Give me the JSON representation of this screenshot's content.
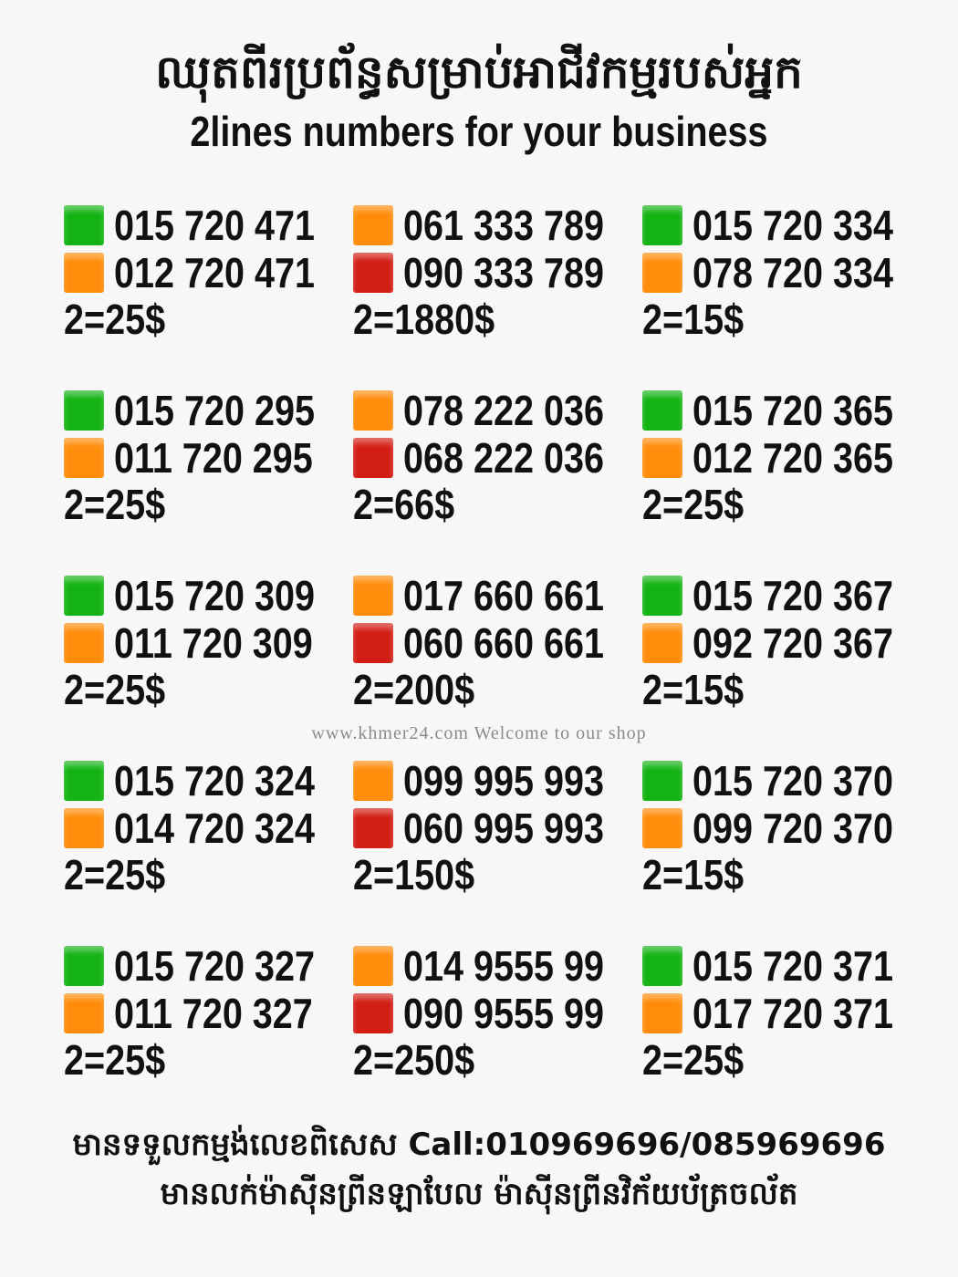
{
  "header": {
    "title_khmer": "ឈុតពីរប្រព័ន្ធសម្រាប់អាជីវកម្មរបស់អ្នក",
    "title_english": "2lines numbers for your business"
  },
  "colors": {
    "green": "#13b313",
    "orange": "#ff8c0a",
    "red": "#d21d14"
  },
  "offers": [
    {
      "lines": [
        {
          "number": "015 720 471",
          "carrier_color": "green"
        },
        {
          "number": "012 720 471",
          "carrier_color": "orange"
        }
      ],
      "price": "2=25$"
    },
    {
      "lines": [
        {
          "number": "061 333 789",
          "carrier_color": "orange"
        },
        {
          "number": "090 333 789",
          "carrier_color": "red"
        }
      ],
      "price": "2=1880$"
    },
    {
      "lines": [
        {
          "number": "015 720 334",
          "carrier_color": "green"
        },
        {
          "number": "078 720 334",
          "carrier_color": "orange"
        }
      ],
      "price": "2=15$"
    },
    {
      "lines": [
        {
          "number": "015 720 295",
          "carrier_color": "green"
        },
        {
          "number": "011 720 295",
          "carrier_color": "orange"
        }
      ],
      "price": "2=25$"
    },
    {
      "lines": [
        {
          "number": "078 222 036",
          "carrier_color": "orange"
        },
        {
          "number": "068 222 036",
          "carrier_color": "red"
        }
      ],
      "price": "2=66$"
    },
    {
      "lines": [
        {
          "number": "015 720 365",
          "carrier_color": "green"
        },
        {
          "number": "012 720 365",
          "carrier_color": "orange"
        }
      ],
      "price": "2=25$"
    },
    {
      "lines": [
        {
          "number": "015 720 309",
          "carrier_color": "green"
        },
        {
          "number": "011 720 309",
          "carrier_color": "orange"
        }
      ],
      "price": "2=25$"
    },
    {
      "lines": [
        {
          "number": "017 660 661",
          "carrier_color": "orange"
        },
        {
          "number": "060 660 661",
          "carrier_color": "red"
        }
      ],
      "price": "2=200$"
    },
    {
      "lines": [
        {
          "number": "015 720 367",
          "carrier_color": "green"
        },
        {
          "number": "092 720 367",
          "carrier_color": "orange"
        }
      ],
      "price": "2=15$"
    },
    {
      "lines": [
        {
          "number": "015 720 324",
          "carrier_color": "green"
        },
        {
          "number": "014 720 324",
          "carrier_color": "orange"
        }
      ],
      "price": "2=25$"
    },
    {
      "lines": [
        {
          "number": "099 995 993",
          "carrier_color": "orange"
        },
        {
          "number": "060 995 993",
          "carrier_color": "red"
        }
      ],
      "price": "2=150$"
    },
    {
      "lines": [
        {
          "number": "015 720 370",
          "carrier_color": "green"
        },
        {
          "number": "099 720 370",
          "carrier_color": "orange"
        }
      ],
      "price": "2=15$"
    },
    {
      "lines": [
        {
          "number": "015 720 327",
          "carrier_color": "green"
        },
        {
          "number": "011 720 327",
          "carrier_color": "orange"
        }
      ],
      "price": "2=25$"
    },
    {
      "lines": [
        {
          "number": "014 9555 99",
          "carrier_color": "orange"
        },
        {
          "number": "090 9555 99",
          "carrier_color": "red"
        }
      ],
      "price": "2=250$"
    },
    {
      "lines": [
        {
          "number": "015 720 371",
          "carrier_color": "green"
        },
        {
          "number": "017 720 371",
          "carrier_color": "orange"
        }
      ],
      "price": "2=25$"
    }
  ],
  "watermark": "www.khmer24.com Welcome to our shop",
  "footer": {
    "line1": "មានទទួលកម្មង់លេខពិសេស Call:010969696/085969696",
    "line2": "មានលក់ម៉ាស៊ីនព្រីនឡាបែល ម៉ាស៊ីនព្រីនវិក័យប័ត្រចល័ត"
  }
}
